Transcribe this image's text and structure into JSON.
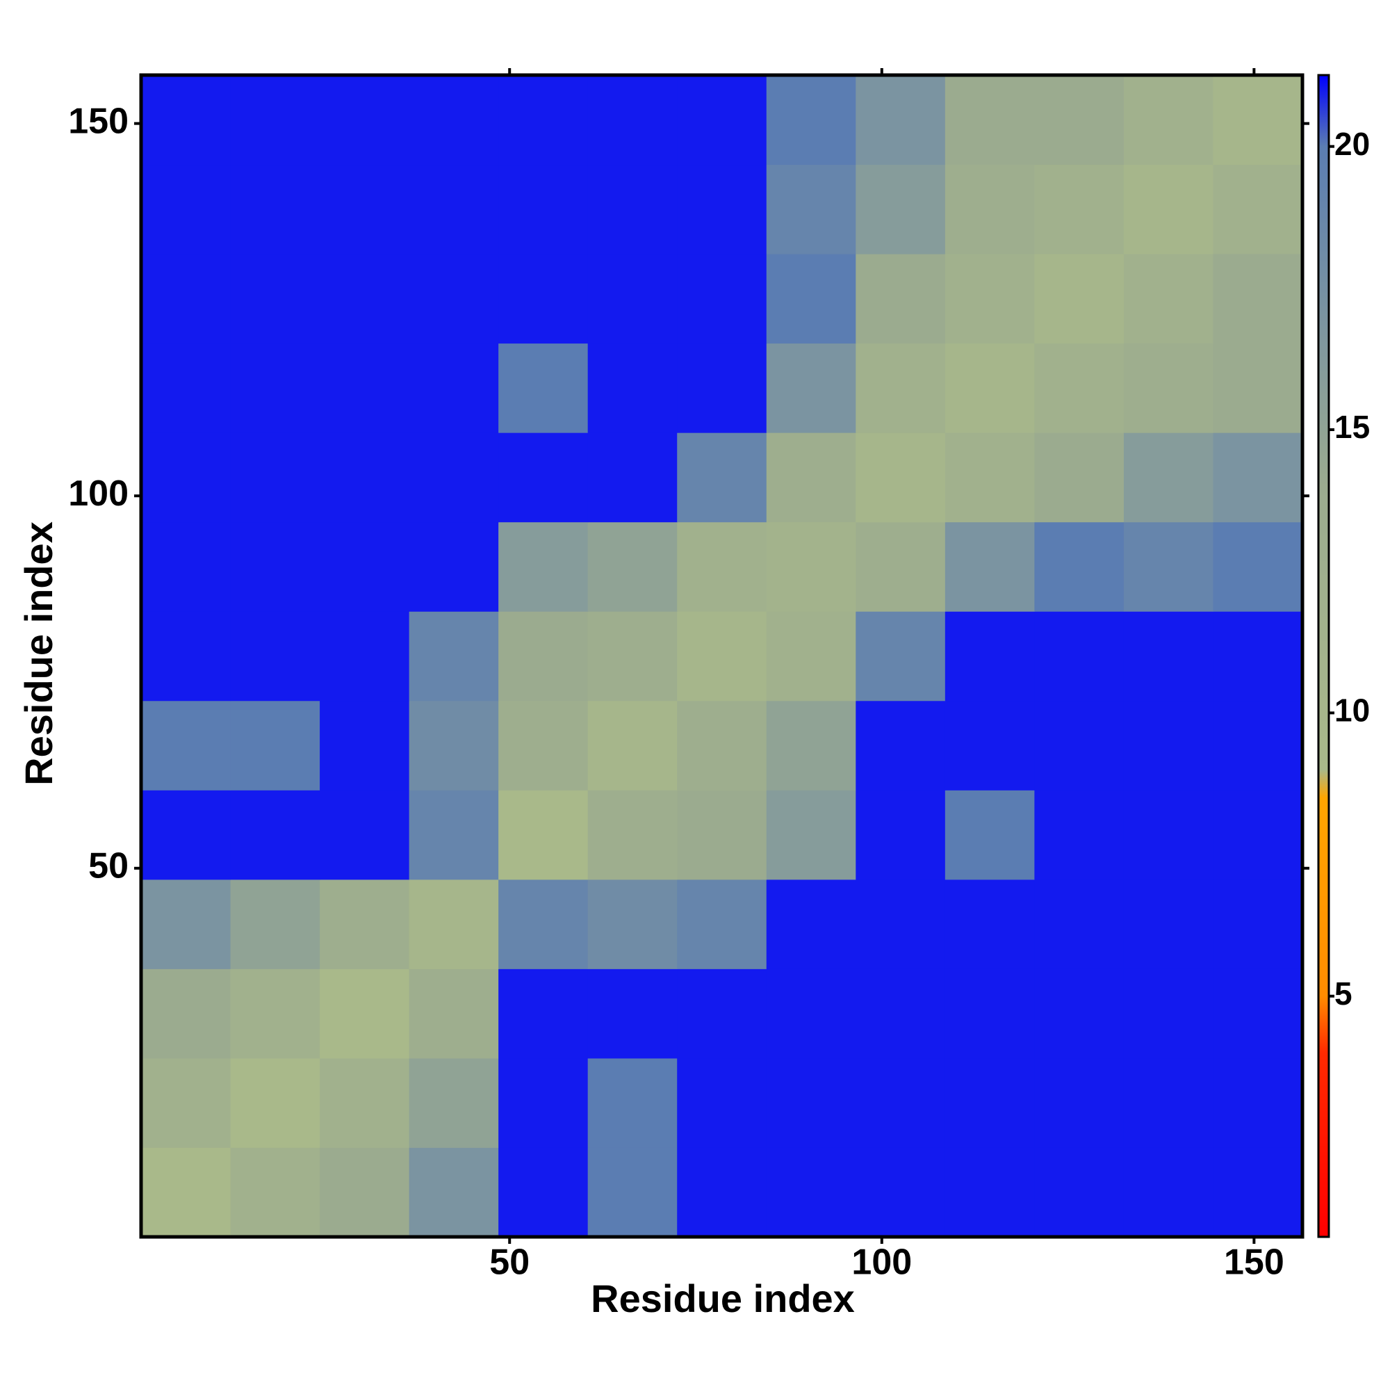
{
  "chart_data": {
    "type": "heatmap",
    "x_label": "Residue index",
    "y_label": "Residue index",
    "xbins": [
      0.5,
      12.5,
      24.5,
      36.5,
      48.5,
      60.5,
      72.5,
      84.5,
      96.5,
      108.5,
      120.5,
      132.5,
      144.5,
      156.5
    ],
    "ybins": [
      0.5,
      12.5,
      24.5,
      36.5,
      48.5,
      60.5,
      72.5,
      84.5,
      96.5,
      108.5,
      120.5,
      132.5,
      144.5,
      156.5
    ],
    "z": [
      [
        9,
        12,
        14,
        17,
        21,
        20,
        21,
        21,
        21,
        21,
        21,
        21,
        21
      ],
      [
        12,
        9,
        12,
        15,
        21,
        20,
        21,
        21,
        21,
        21,
        21,
        21,
        21
      ],
      [
        14,
        12,
        9,
        13,
        21,
        21,
        21,
        21,
        21,
        21,
        21,
        21,
        21
      ],
      [
        17,
        15,
        13,
        10,
        19,
        18,
        19,
        21,
        21,
        21,
        21,
        21,
        21
      ],
      [
        21,
        21,
        21,
        19,
        9,
        13,
        14,
        16,
        21,
        20,
        21,
        21,
        21
      ],
      [
        20,
        20,
        21,
        18,
        13,
        10,
        13,
        15,
        21,
        21,
        21,
        21,
        21
      ],
      [
        21,
        21,
        21,
        19,
        14,
        13,
        10,
        12,
        19,
        21,
        21,
        21,
        21
      ],
      [
        21,
        21,
        21,
        21,
        16,
        15,
        12,
        11,
        13,
        17,
        20,
        19,
        20
      ],
      [
        21,
        21,
        21,
        21,
        21,
        21,
        19,
        13,
        10,
        12,
        14,
        16,
        17
      ],
      [
        21,
        21,
        21,
        21,
        20,
        21,
        21,
        17,
        12,
        10,
        12,
        13,
        14
      ],
      [
        21,
        21,
        21,
        21,
        21,
        21,
        21,
        20,
        14,
        12,
        10,
        12,
        14
      ],
      [
        21,
        21,
        21,
        21,
        21,
        21,
        21,
        19,
        16,
        13,
        12,
        10,
        12
      ],
      [
        21,
        21,
        21,
        21,
        21,
        21,
        21,
        20,
        17,
        14,
        14,
        12,
        10
      ]
    ],
    "xlim": [
      0.5,
      156.5
    ],
    "ylim": [
      0.5,
      156.5
    ],
    "xticks": [
      50,
      100,
      150
    ],
    "yticks": [
      50,
      100,
      150
    ],
    "zlim": [
      0.75,
      21.26
    ],
    "zticks": [
      5,
      10,
      15,
      20
    ],
    "colorscale": [
      [
        0.75,
        "#ff0000"
      ],
      [
        4,
        "#ff2a00"
      ],
      [
        5,
        "#ff8c00"
      ],
      [
        8.5,
        "#ffa500"
      ],
      [
        9,
        "#a9b98a"
      ],
      [
        14,
        "#9bab8f"
      ],
      [
        20,
        "#5b7db2"
      ],
      [
        21.26,
        "#0000ff"
      ]
    ]
  }
}
